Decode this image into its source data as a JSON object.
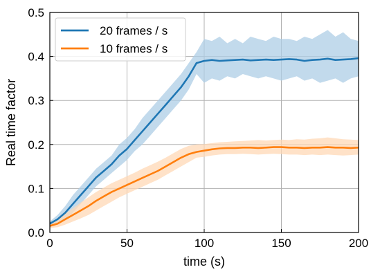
{
  "chart_data": {
    "type": "line",
    "title": "",
    "xlabel": "time (s)",
    "ylabel": "Real time factor",
    "xlim": [
      0,
      200
    ],
    "ylim": [
      0.0,
      0.5
    ],
    "x_ticks": [
      0,
      50,
      100,
      150,
      200
    ],
    "x_tick_labels": [
      "0",
      "50",
      "100",
      "150",
      "200"
    ],
    "y_ticks": [
      0.0,
      0.1,
      0.2,
      0.3,
      0.4,
      0.5
    ],
    "y_tick_labels": [
      "0.0",
      "0.1",
      "0.2",
      "0.3",
      "0.4",
      "0.5"
    ],
    "grid": true,
    "legend_position": "top-left",
    "x": [
      0,
      5,
      10,
      15,
      20,
      25,
      30,
      35,
      40,
      45,
      50,
      55,
      60,
      65,
      70,
      75,
      80,
      85,
      90,
      95,
      100,
      105,
      110,
      115,
      120,
      125,
      130,
      135,
      140,
      145,
      150,
      155,
      160,
      165,
      170,
      175,
      180,
      185,
      190,
      195,
      200
    ],
    "series": [
      {
        "name": "20 frames / s",
        "color": "#1f77b4",
        "band_color": "#aecde6",
        "values": [
          0.02,
          0.03,
          0.045,
          0.065,
          0.085,
          0.105,
          0.125,
          0.14,
          0.155,
          0.175,
          0.19,
          0.21,
          0.23,
          0.25,
          0.27,
          0.29,
          0.31,
          0.33,
          0.355,
          0.385,
          0.39,
          0.392,
          0.39,
          0.391,
          0.392,
          0.393,
          0.391,
          0.392,
          0.393,
          0.392,
          0.393,
          0.394,
          0.393,
          0.39,
          0.392,
          0.393,
          0.395,
          0.392,
          0.393,
          0.394,
          0.396
        ],
        "lower": [
          0.015,
          0.02,
          0.03,
          0.045,
          0.065,
          0.085,
          0.105,
          0.12,
          0.135,
          0.15,
          0.165,
          0.185,
          0.2,
          0.22,
          0.24,
          0.26,
          0.28,
          0.3,
          0.325,
          0.36,
          0.34,
          0.35,
          0.345,
          0.355,
          0.35,
          0.36,
          0.355,
          0.35,
          0.355,
          0.35,
          0.345,
          0.35,
          0.355,
          0.345,
          0.35,
          0.34,
          0.345,
          0.35,
          0.34,
          0.35,
          0.355
        ],
        "upper": [
          0.025,
          0.04,
          0.06,
          0.085,
          0.105,
          0.125,
          0.145,
          0.16,
          0.175,
          0.2,
          0.215,
          0.235,
          0.26,
          0.28,
          0.3,
          0.32,
          0.34,
          0.36,
          0.385,
          0.41,
          0.44,
          0.435,
          0.445,
          0.43,
          0.44,
          0.43,
          0.445,
          0.44,
          0.435,
          0.445,
          0.44,
          0.44,
          0.435,
          0.445,
          0.44,
          0.45,
          0.46,
          0.445,
          0.455,
          0.44,
          0.435
        ]
      },
      {
        "name": "10 frames / s",
        "color": "#ff7f0e",
        "band_color": "#ffd8b5",
        "values": [
          0.015,
          0.02,
          0.03,
          0.04,
          0.05,
          0.06,
          0.072,
          0.082,
          0.092,
          0.1,
          0.108,
          0.116,
          0.124,
          0.132,
          0.14,
          0.15,
          0.16,
          0.17,
          0.178,
          0.183,
          0.186,
          0.189,
          0.191,
          0.192,
          0.192,
          0.193,
          0.193,
          0.192,
          0.193,
          0.194,
          0.194,
          0.193,
          0.193,
          0.192,
          0.193,
          0.193,
          0.194,
          0.193,
          0.193,
          0.192,
          0.193
        ],
        "lower": [
          0.01,
          0.012,
          0.018,
          0.025,
          0.032,
          0.04,
          0.05,
          0.06,
          0.07,
          0.08,
          0.088,
          0.096,
          0.104,
          0.112,
          0.12,
          0.13,
          0.14,
          0.15,
          0.16,
          0.17,
          0.172,
          0.175,
          0.177,
          0.178,
          0.178,
          0.179,
          0.178,
          0.177,
          0.178,
          0.179,
          0.178,
          0.177,
          0.177,
          0.176,
          0.177,
          0.176,
          0.177,
          0.176,
          0.175,
          0.176,
          0.177
        ],
        "upper": [
          0.022,
          0.03,
          0.042,
          0.055,
          0.068,
          0.08,
          0.092,
          0.102,
          0.112,
          0.12,
          0.128,
          0.136,
          0.145,
          0.153,
          0.161,
          0.17,
          0.18,
          0.19,
          0.197,
          0.2,
          0.201,
          0.203,
          0.205,
          0.206,
          0.207,
          0.208,
          0.209,
          0.21,
          0.209,
          0.21,
          0.211,
          0.21,
          0.212,
          0.211,
          0.213,
          0.214,
          0.216,
          0.214,
          0.212,
          0.211,
          0.21
        ]
      }
    ]
  }
}
